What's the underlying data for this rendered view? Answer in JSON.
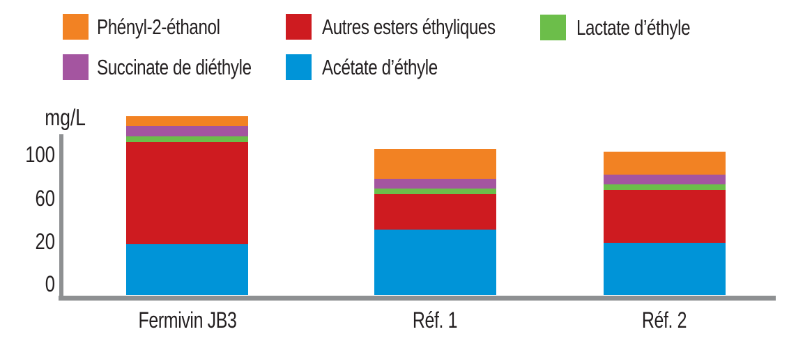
{
  "chart_data": {
    "type": "bar",
    "stacked": true,
    "ylabel": "mg/L",
    "categories": [
      "Fermivin JB3",
      "Réf. 1",
      "Réf. 2"
    ],
    "y_ticks": [
      "100",
      "60",
      "20",
      "0"
    ],
    "ylim": [
      0,
      130
    ],
    "grid": false,
    "legend_position": "top",
    "series": [
      {
        "name": "Phényl-2-éthanol",
        "color": "#F28223",
        "values": [
          7,
          21,
          16
        ]
      },
      {
        "name": "Succinate de diéthyle",
        "color": "#A455A0",
        "values": [
          7,
          7,
          7
        ]
      },
      {
        "name": "Lactate d’éthyle",
        "color": "#6CBE4A",
        "values": [
          4,
          4,
          4
        ]
      },
      {
        "name": "Autres esters éthyliques",
        "color": "#CE1B20",
        "values": [
          72,
          25,
          37
        ]
      },
      {
        "name": "Acétate d’éthyle",
        "color": "#0094D8",
        "values": [
          36,
          46,
          37
        ]
      }
    ]
  },
  "legend": {
    "items": [
      {
        "label": "Phényl-2-éthanol",
        "color": "#F28223"
      },
      {
        "label": "Autres esters éthyliques",
        "color": "#CE1B20"
      },
      {
        "label": "Lactate d’éthyle",
        "color": "#6CBE4A"
      },
      {
        "label": "Succinate de diéthyle",
        "color": "#A455A0"
      },
      {
        "label": "Acétate d’éthyle",
        "color": "#0094D8"
      }
    ]
  },
  "colors": {
    "axis": "#8E9092",
    "text": "#231F20",
    "background": "#FFFFFF"
  }
}
